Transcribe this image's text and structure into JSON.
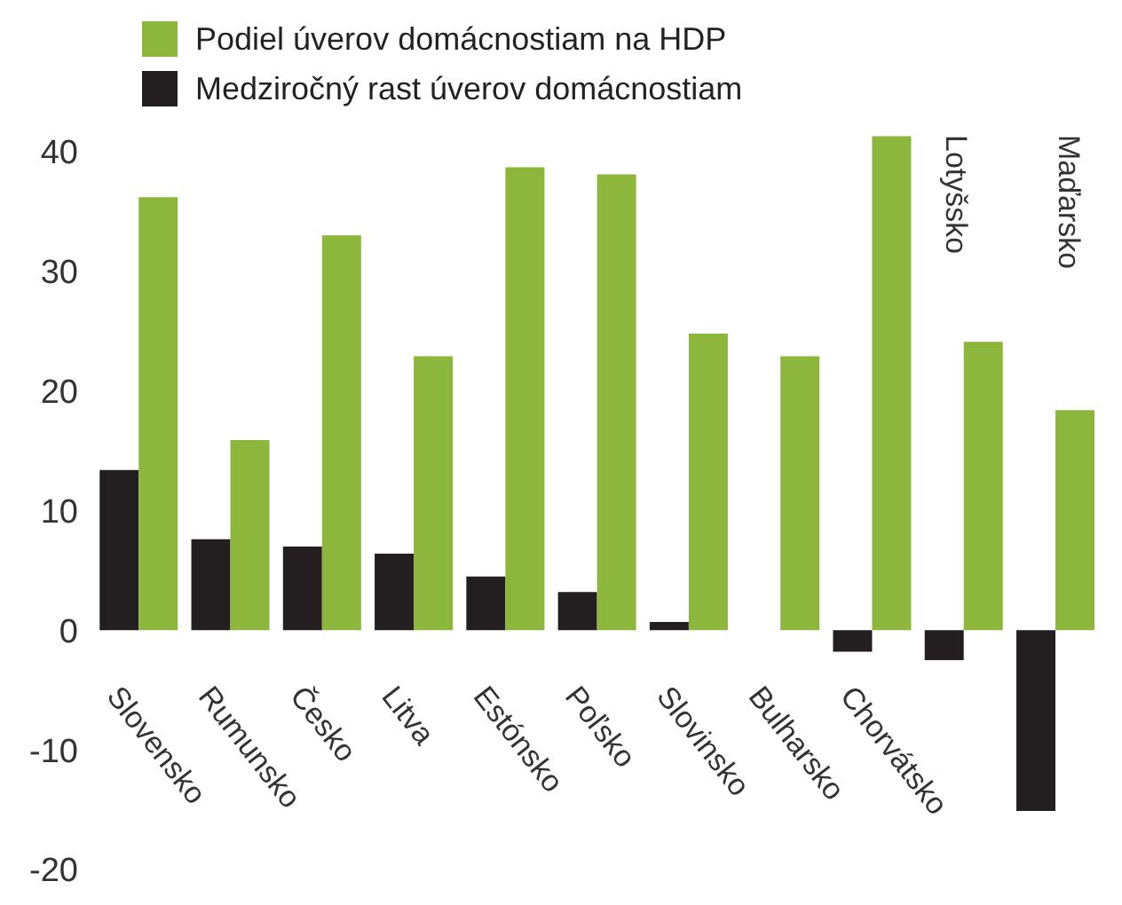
{
  "chart_data": {
    "type": "bar",
    "categories": [
      "Slovensko",
      "Rumunsko",
      "Česko",
      "Litva",
      "Estónsko",
      "Poľsko",
      "Slovinsko",
      "Bulharsko",
      "Chorvátsko",
      "Lotyšsko",
      "Maďarsko"
    ],
    "series": [
      {
        "name": "Medziročný rast úverov domácnostiam",
        "color": "#231f20",
        "values": [
          13.4,
          7.6,
          7.0,
          6.4,
          4.5,
          3.2,
          0.7,
          0,
          -1.8,
          -2.5,
          -15.1
        ]
      },
      {
        "name": "Podiel úverov domácnostiam na HDP",
        "color": "#8db63c",
        "values": [
          36.2,
          15.9,
          33.0,
          22.9,
          38.7,
          38.1,
          24.8,
          22.9,
          41.3,
          24.1,
          18.4
        ]
      }
    ],
    "ylim": [
      -20,
      42
    ],
    "yticks": [
      -20,
      -10,
      0,
      10,
      20,
      30,
      40
    ],
    "grid": false,
    "legend": "top left"
  }
}
